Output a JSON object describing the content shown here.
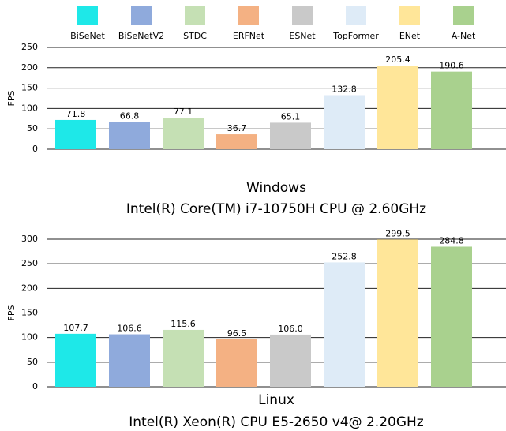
{
  "legend": {
    "labels": [
      "BiSeNet",
      "BiSeNetV2",
      "STDC",
      "ERFNet",
      "ESNet",
      "TopFormer",
      "ENet",
      "A-Net"
    ],
    "colors": [
      "#1ee8e8",
      "#8faadc",
      "#c5e0b4",
      "#f4b183",
      "#c9c9c9",
      "#deebf7",
      "#ffe699",
      "#a9d18e"
    ]
  },
  "chart_data": [
    {
      "type": "bar",
      "ylabel": "FPS",
      "xlabel": "Windows",
      "subtitle": "Intel(R) Core(TM) i7-10750H CPU @ 2.60GHz",
      "values": [
        71.8,
        66.8,
        77.1,
        36.7,
        65.1,
        132.8,
        205.4,
        190.6
      ],
      "ylim": [
        0,
        250
      ],
      "yticks": [
        0,
        50,
        100,
        150,
        200,
        250
      ],
      "grid": true
    },
    {
      "type": "bar",
      "ylabel": "FPS",
      "xlabel": "Linux",
      "subtitle": "Intel(R) Xeon(R) CPU E5-2650 v4@ 2.20GHz",
      "values": [
        107.7,
        106.6,
        115.6,
        96.5,
        106.0,
        252.8,
        299.5,
        284.8
      ],
      "value_labels": [
        "107.7",
        "106.6",
        "115.6",
        "96.5",
        "106.0",
        "252.8",
        "299.5",
        "284.8"
      ],
      "ylim": [
        0,
        300
      ],
      "yticks": [
        0,
        50,
        100,
        150,
        200,
        250,
        300
      ],
      "grid": true
    }
  ]
}
